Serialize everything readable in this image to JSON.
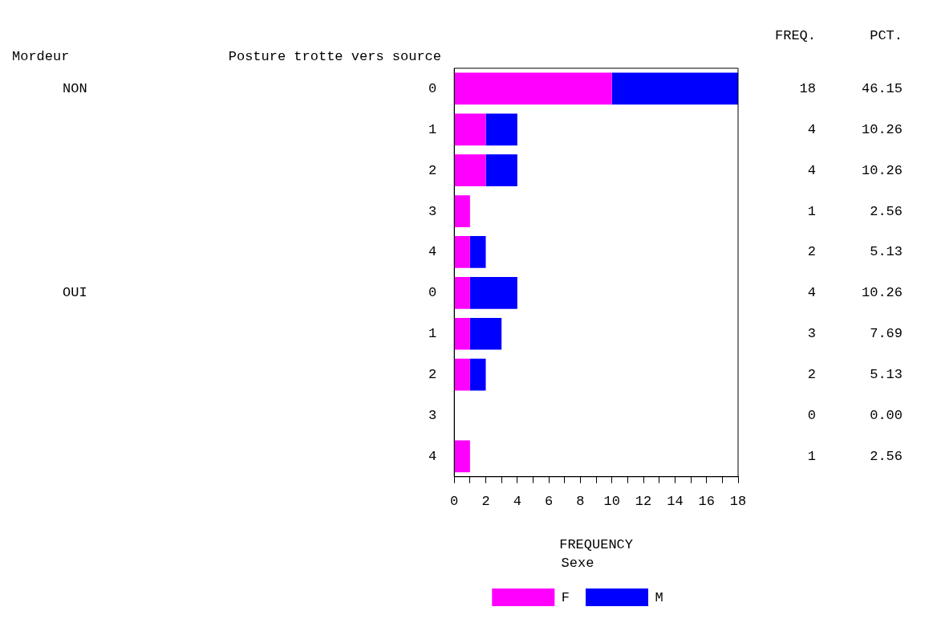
{
  "chart_data": {
    "type": "bar",
    "orientation": "horizontal",
    "stacked": true,
    "categories": [
      "0",
      "1",
      "2",
      "3",
      "4",
      "0",
      "1",
      "2",
      "3",
      "4"
    ],
    "series": [
      {
        "name": "F",
        "color": "#ff00ff",
        "values": [
          10,
          2,
          2,
          1,
          1,
          1,
          1,
          1,
          0,
          1
        ]
      },
      {
        "name": "M",
        "color": "#0000ff",
        "values": [
          8,
          2,
          2,
          0,
          1,
          3,
          2,
          1,
          0,
          0
        ]
      }
    ],
    "xlim": [
      0,
      18
    ],
    "xticks": [
      0,
      {
        "value": 1,
        "label": null
      },
      2,
      {
        "value": 3,
        "label": null
      },
      4,
      {
        "value": 5,
        "label": null
      },
      6,
      {
        "value": 7,
        "label": null
      },
      8,
      {
        "value": 9,
        "label": null
      },
      10,
      {
        "value": 11,
        "label": null
      },
      12,
      {
        "value": 13,
        "label": null
      },
      14,
      {
        "value": 15,
        "label": null
      },
      16,
      {
        "value": 17,
        "label": null
      },
      18
    ],
    "xlabel": "FREQUENCY",
    "legend": "bottom",
    "legend_title": "Sexe",
    "grid": false,
    "annotations": [
      "Mordeur",
      "Posture trotte vers source",
      "FREQ.",
      "PCT.",
      "NON",
      "OUI",
      "18",
      "4",
      "4",
      "1",
      "2",
      "4",
      "3",
      "2",
      "0",
      "1",
      "46.15",
      "10.26",
      "10.26",
      "2.56",
      "5.13",
      "10.26",
      "7.69",
      "5.13",
      "0.00",
      "2.56"
    ]
  }
}
